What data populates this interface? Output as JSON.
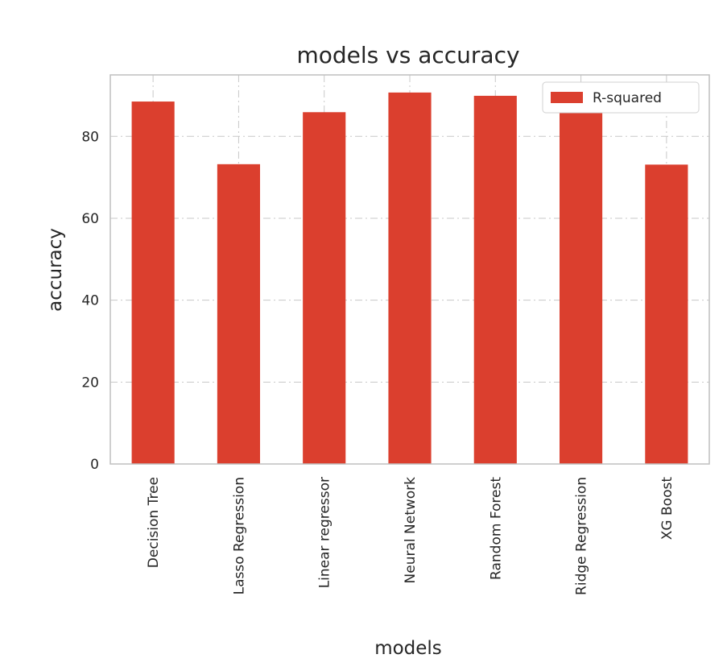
{
  "chart_data": {
    "type": "bar",
    "title": "models vs accuracy",
    "xlabel": "models",
    "ylabel": "accuracy",
    "categories": [
      "Decision Tree",
      "Lasso Regression",
      "Linear regressor",
      "Neural Network",
      "Random Forest",
      "Ridge Regression",
      "XG Boost"
    ],
    "series": [
      {
        "name": "R-squared",
        "values": [
          88.5,
          73.2,
          85.9,
          90.7,
          89.9,
          86.0,
          73.1
        ],
        "color": "#db3f2e"
      }
    ],
    "yticks": [
      0,
      20,
      40,
      60,
      80
    ],
    "ylim": [
      0,
      95
    ],
    "grid": true,
    "grid_style": "dash-dot",
    "legend_position": "upper right"
  },
  "colors": {
    "bar": "#db3f2e",
    "grid": "#c8c8c8",
    "spine": "#bfbfbf",
    "text": "#262626"
  }
}
